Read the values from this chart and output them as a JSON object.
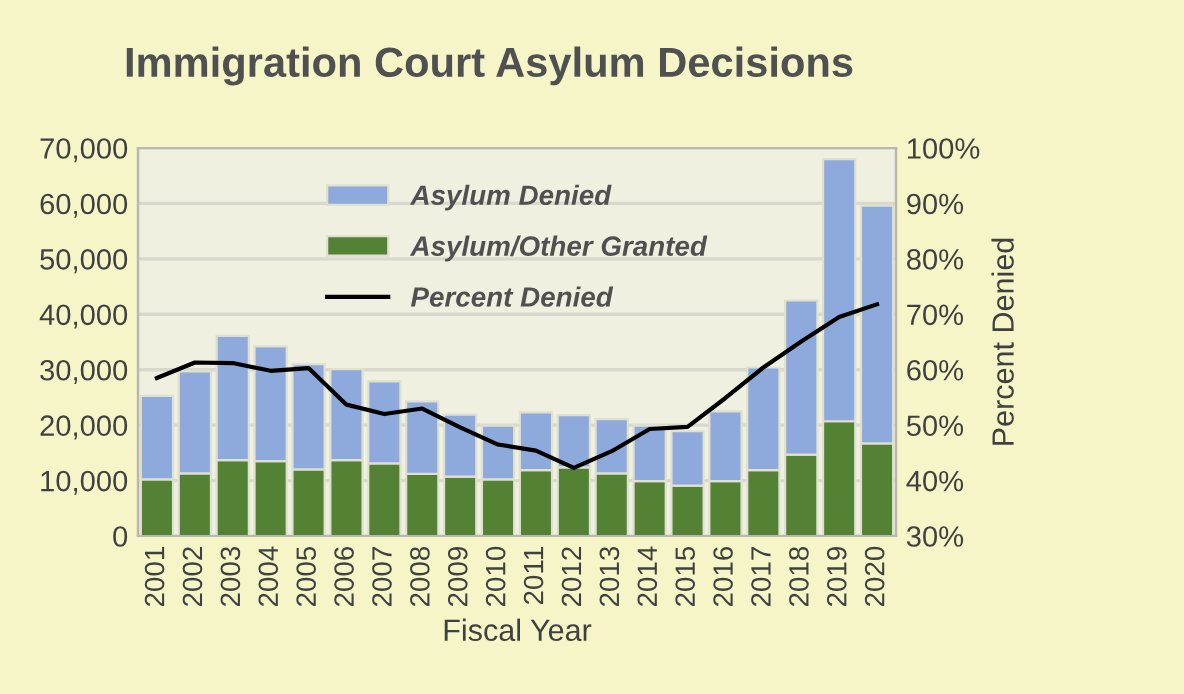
{
  "chart_data": {
    "type": "bar",
    "title": "Immigration Court Asylum Decisions",
    "xlabel": "Fiscal Year",
    "y2label": "Percent Denied",
    "categories": [
      "2001",
      "2002",
      "2003",
      "2004",
      "2005",
      "2006",
      "2007",
      "2008",
      "2009",
      "2010",
      "2011",
      "2012",
      "2013",
      "2014",
      "2015",
      "2016",
      "2017",
      "2018",
      "2019",
      "2020"
    ],
    "stacked": true,
    "series": [
      {
        "name": "Asylum/Other Granted",
        "color": "#548235",
        "values": [
          10200,
          11300,
          13700,
          13500,
          12000,
          13700,
          13100,
          11200,
          10700,
          10200,
          11900,
          12400,
          11300,
          9900,
          9100,
          9900,
          11900,
          14700,
          20700,
          16700
        ]
      },
      {
        "name": "Asylum Denied",
        "color": "#8eaadc",
        "values": [
          15100,
          18400,
          22400,
          20700,
          19000,
          16400,
          14800,
          13100,
          11200,
          9700,
          10400,
          9400,
          9800,
          10000,
          9800,
          12600,
          18500,
          27800,
          47300,
          42900
        ]
      },
      {
        "name": "Percent Denied",
        "type": "line",
        "axis": "y2",
        "color": "#000000",
        "values": [
          58.5,
          61.3,
          61.2,
          59.8,
          60.3,
          53.7,
          52.0,
          53.0,
          49.6,
          46.5,
          45.4,
          42.3,
          45.3,
          49.3,
          49.7,
          54.9,
          60.4,
          65.1,
          69.5,
          71.8
        ]
      }
    ],
    "ylim": [
      0,
      70000
    ],
    "yticks": [
      {
        "value": 0,
        "label": "0"
      },
      {
        "value": 10000,
        "label": "10,000"
      },
      {
        "value": 20000,
        "label": "20,000"
      },
      {
        "value": 30000,
        "label": "30,000"
      },
      {
        "value": 40000,
        "label": "40,000"
      },
      {
        "value": 50000,
        "label": "50,000"
      },
      {
        "value": 60000,
        "label": "60,000"
      },
      {
        "value": 70000,
        "label": "70,000"
      }
    ],
    "y2lim": [
      30,
      100
    ],
    "y2ticks": [
      {
        "value": 30,
        "label": "30%"
      },
      {
        "value": 40,
        "label": "40%"
      },
      {
        "value": 50,
        "label": "50%"
      },
      {
        "value": 60,
        "label": "60%"
      },
      {
        "value": 70,
        "label": "70%"
      },
      {
        "value": 80,
        "label": "80%"
      },
      {
        "value": 90,
        "label": "90%"
      },
      {
        "value": 100,
        "label": "100%"
      }
    ],
    "grid": "y",
    "legend": "top",
    "marker": "none",
    "line_style": "solid"
  }
}
